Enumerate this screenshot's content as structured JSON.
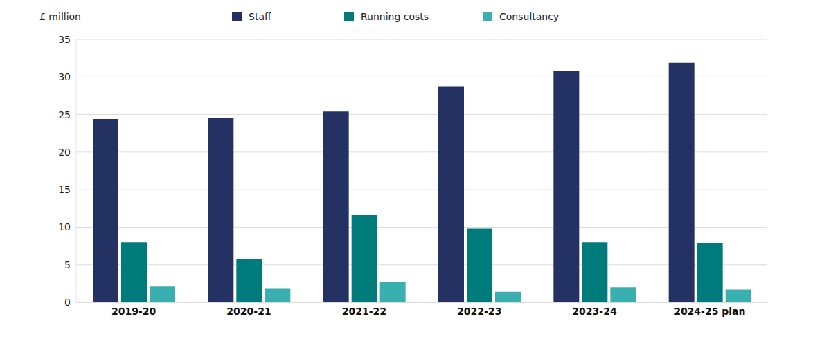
{
  "chart_data": {
    "type": "bar",
    "y_label": "£ million",
    "categories": [
      "2019-20",
      "2020-21",
      "2021-22",
      "2022-23",
      "2023-24",
      "2024-25 plan"
    ],
    "series": [
      {
        "name": "Staff",
        "color": "#233163",
        "values": [
          24.4,
          24.6,
          25.4,
          28.7,
          30.8,
          31.9
        ]
      },
      {
        "name": "Running costs",
        "color": "#007b7b",
        "values": [
          8.0,
          5.8,
          11.6,
          9.8,
          8.0,
          7.9
        ]
      },
      {
        "name": "Consultancy",
        "color": "#3aafb0",
        "values": [
          2.1,
          1.8,
          2.7,
          1.4,
          2.0,
          1.7
        ]
      }
    ],
    "ylim": [
      0,
      35
    ],
    "yticks": [
      0,
      5,
      10,
      15,
      20,
      25,
      30,
      35
    ],
    "grid": true,
    "legend": "top"
  }
}
